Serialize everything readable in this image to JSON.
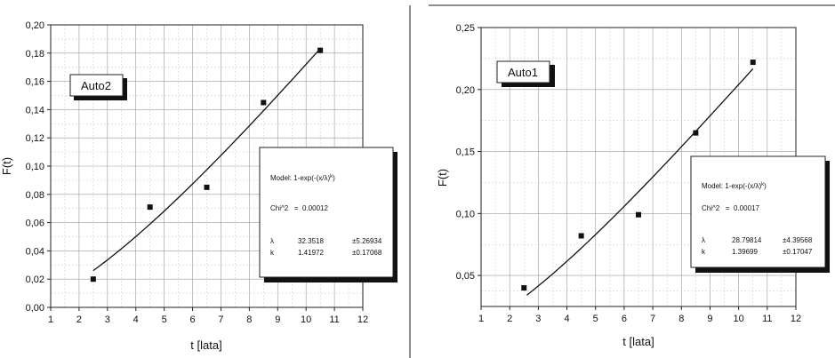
{
  "chart_data": [
    {
      "type": "scatter",
      "panel": "left",
      "tag": "Auto2",
      "xlabel": "t [lata]",
      "ylabel": "F(t)",
      "xlim": [
        1,
        12
      ],
      "ylim": [
        0,
        0.2
      ],
      "xticks": [
        1,
        2,
        3,
        4,
        5,
        6,
        7,
        8,
        9,
        10,
        11,
        12
      ],
      "yticks": [
        0,
        0.02,
        0.04,
        0.06,
        0.08,
        0.1,
        0.12,
        0.14,
        0.16,
        0.18,
        0.2
      ],
      "xtick_labels": [
        "1",
        "2",
        "3",
        "4",
        "5",
        "6",
        "7",
        "8",
        "9",
        "10",
        "11",
        "12"
      ],
      "ytick_labels": [
        "0,00",
        "0,02",
        "0,04",
        "0,06",
        "0,08",
        "0,10",
        "0,12",
        "0,14",
        "0,16",
        "0,18",
        "0,20"
      ],
      "grid": true,
      "points": [
        {
          "x": 2.5,
          "y": 0.02
        },
        {
          "x": 4.5,
          "y": 0.071
        },
        {
          "x": 6.5,
          "y": 0.085
        },
        {
          "x": 8.5,
          "y": 0.145
        },
        {
          "x": 10.5,
          "y": 0.182
        }
      ],
      "fit": {
        "model": "Model: 1-exp(-(x/λ)",
        "model_exp": "k",
        "model_end": ")",
        "lambda": 32.3518,
        "k": 1.41972,
        "x_range": [
          2.5,
          10.5
        ]
      },
      "fit_box": {
        "model_text": "Model: 1-exp(-(x/λ)",
        "model_sup": "k",
        "model_close": ")",
        "chi_line": "Chi^2   =  0.00012",
        "rows": [
          {
            "name": "λ",
            "value": "32.3518",
            "err": "±5.26934"
          },
          {
            "name": "k",
            "value": "1.41972",
            "err": "±0.17068"
          }
        ],
        "legend_position": "bottom-right"
      },
      "tag_position": "top-left"
    },
    {
      "type": "scatter",
      "panel": "right",
      "tag": "Auto1",
      "xlabel": "t [lata]",
      "ylabel": "F(t)",
      "xlim": [
        1,
        12
      ],
      "ylim": [
        0.025,
        0.25
      ],
      "xticks": [
        1,
        2,
        3,
        4,
        5,
        6,
        7,
        8,
        9,
        10,
        11,
        12
      ],
      "yticks": [
        0.05,
        0.1,
        0.15,
        0.2,
        0.25
      ],
      "xtick_labels": [
        "1",
        "2",
        "3",
        "4",
        "5",
        "6",
        "7",
        "8",
        "9",
        "10",
        "11",
        "12"
      ],
      "ytick_labels": [
        "0,05",
        "0,10",
        "0,15",
        "0,20",
        "0,25"
      ],
      "grid": true,
      "points": [
        {
          "x": 2.5,
          "y": 0.04
        },
        {
          "x": 4.5,
          "y": 0.082
        },
        {
          "x": 6.5,
          "y": 0.099
        },
        {
          "x": 8.5,
          "y": 0.165
        },
        {
          "x": 10.5,
          "y": 0.222
        }
      ],
      "fit": {
        "lambda": 28.79814,
        "k": 1.39699,
        "x_range": [
          2.6,
          10.5
        ]
      },
      "fit_box": {
        "model_text": "Model: 1-exp(-(x/λ)",
        "model_sup": "k",
        "model_close": ")",
        "chi_line": "Chi^2   =  0.00017",
        "rows": [
          {
            "name": "λ",
            "value": "28.79814",
            "err": "±4.39568"
          },
          {
            "name": "k",
            "value": "1.39699",
            "err": "±0.17047"
          }
        ],
        "legend_position": "right"
      },
      "tag_position": "top-left"
    }
  ]
}
